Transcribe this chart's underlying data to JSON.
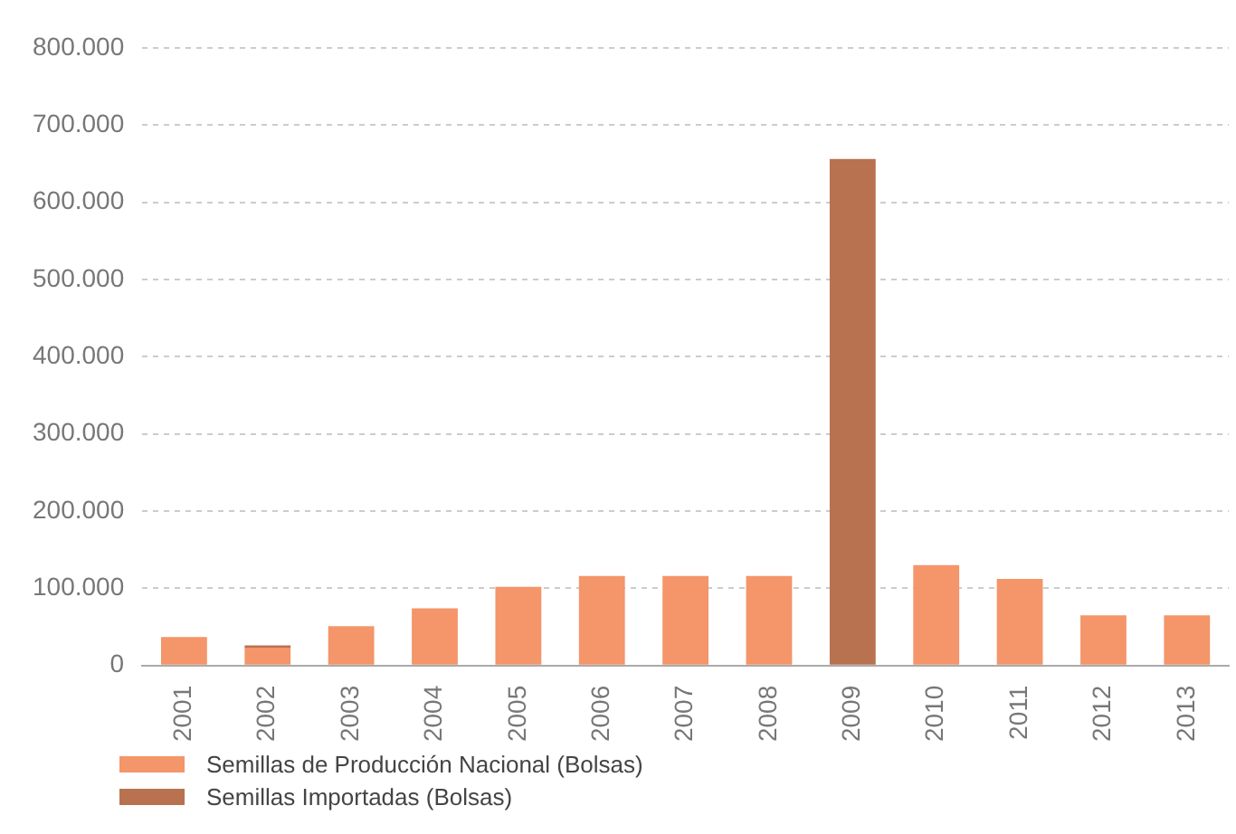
{
  "chart_data": {
    "type": "bar",
    "stacked": true,
    "categories": [
      "2001",
      "2002",
      "2003",
      "2004",
      "2005",
      "2006",
      "2007",
      "2008",
      "2009",
      "2010",
      "2011",
      "2012",
      "2013"
    ],
    "series": [
      {
        "name": "Semillas de Producción Nacional (Bolsas)",
        "color": "#f4956a",
        "values": [
          37000,
          23000,
          51000,
          74000,
          102000,
          116000,
          116000,
          116000,
          0,
          130000,
          112000,
          65000,
          65000
        ]
      },
      {
        "name": "Semillas Importadas (Bolsas)",
        "color": "#b87250",
        "values": [
          0,
          3000,
          0,
          0,
          0,
          0,
          0,
          0,
          656000,
          0,
          0,
          0,
          0
        ]
      }
    ],
    "ylim": [
      0,
      800000
    ],
    "yticks": [
      {
        "value": 0,
        "label": "0"
      },
      {
        "value": 100000,
        "label": "100.000"
      },
      {
        "value": 200000,
        "label": "200.000"
      },
      {
        "value": 300000,
        "label": "300.000"
      },
      {
        "value": 400000,
        "label": "400.000"
      },
      {
        "value": 500000,
        "label": "500.000"
      },
      {
        "value": 600000,
        "label": "600.000"
      },
      {
        "value": 700000,
        "label": "700.000"
      },
      {
        "value": 800000,
        "label": "800.000"
      }
    ],
    "grid": "y",
    "legend": "bottom left"
  }
}
